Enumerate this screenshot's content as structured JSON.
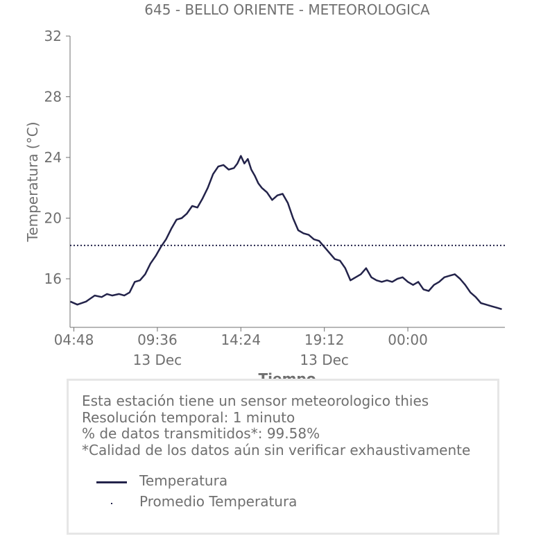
{
  "chart_data": {
    "type": "line",
    "title": "645 - BELLO ORIENTE - METEOROLOGICA",
    "xlabel": "Tiempo",
    "ylabel": "Temperatura (°C)",
    "ylim": [
      12.8,
      32
    ],
    "yticks": [
      16,
      20,
      24,
      28,
      32
    ],
    "xlim": [
      4.58,
      29.58
    ],
    "xticks": [
      {
        "x": 4.8,
        "label": "04:48",
        "sub": ""
      },
      {
        "x": 9.6,
        "label": "09:36",
        "sub": "13 Dec"
      },
      {
        "x": 14.4,
        "label": "14:24",
        "sub": ""
      },
      {
        "x": 19.2,
        "label": "19:12",
        "sub": "13 Dec"
      },
      {
        "x": 24.0,
        "label": "00:00",
        "sub": ""
      }
    ],
    "grid": false,
    "color": "#23234a",
    "series": [
      {
        "name": "Temperatura",
        "style": "solid",
        "x": [
          4.6,
          5.0,
          5.5,
          6.0,
          6.4,
          6.7,
          7.0,
          7.4,
          7.7,
          8.0,
          8.3,
          8.6,
          8.9,
          9.2,
          9.5,
          9.8,
          10.1,
          10.4,
          10.7,
          11.0,
          11.3,
          11.6,
          11.9,
          12.2,
          12.5,
          12.8,
          13.1,
          13.4,
          13.7,
          14.0,
          14.2,
          14.4,
          14.6,
          14.8,
          15.0,
          15.2,
          15.4,
          15.6,
          15.9,
          16.2,
          16.5,
          16.8,
          17.1,
          17.4,
          17.7,
          18.0,
          18.3,
          18.6,
          18.9,
          19.2,
          19.5,
          19.8,
          20.1,
          20.4,
          20.7,
          21.0,
          21.3,
          21.6,
          21.9,
          22.2,
          22.5,
          22.8,
          23.1,
          23.4,
          23.7,
          24.0,
          24.3,
          24.6,
          24.9,
          25.2,
          25.5,
          25.8,
          26.1,
          26.4,
          26.7,
          27.0,
          27.3,
          27.6,
          27.9,
          28.2,
          28.5,
          28.8,
          29.1,
          29.4
        ],
        "y": [
          14.5,
          14.3,
          14.5,
          14.9,
          14.8,
          15.0,
          14.9,
          15.0,
          14.9,
          15.1,
          15.8,
          15.9,
          16.3,
          17.0,
          17.5,
          18.1,
          18.6,
          19.3,
          19.9,
          20.0,
          20.3,
          20.8,
          20.7,
          21.3,
          22.0,
          22.9,
          23.4,
          23.5,
          23.2,
          23.3,
          23.6,
          24.1,
          23.6,
          23.9,
          23.2,
          22.8,
          22.3,
          22.0,
          21.7,
          21.2,
          21.5,
          21.6,
          21.0,
          20.0,
          19.2,
          19.0,
          18.9,
          18.6,
          18.5,
          18.1,
          17.7,
          17.3,
          17.2,
          16.7,
          15.9,
          16.1,
          16.3,
          16.7,
          16.1,
          15.9,
          15.8,
          15.9,
          15.8,
          16.0,
          16.1,
          15.8,
          15.6,
          15.8,
          15.3,
          15.2,
          15.6,
          15.8,
          16.1,
          16.2,
          16.3,
          16.0,
          15.6,
          15.1,
          14.8,
          14.4,
          14.3,
          14.2,
          14.1,
          14.0
        ]
      },
      {
        "name": "Promedio Temperatura",
        "style": "dotted",
        "x": [
          4.58,
          29.58
        ],
        "y": [
          18.2,
          18.2
        ]
      }
    ]
  },
  "info": {
    "line1": "Esta estación tiene un sensor meteorologico thies",
    "line2": "Resolución temporal: 1 minuto",
    "line3": "% de datos transmitidos*: 99.58%",
    "line4": "*Calidad de los datos aún sin verificar exhaustivamente"
  },
  "legend": {
    "items": [
      {
        "label": "Temperatura",
        "style": "solid"
      },
      {
        "label": "Promedio Temperatura",
        "style": "dotted"
      }
    ]
  }
}
